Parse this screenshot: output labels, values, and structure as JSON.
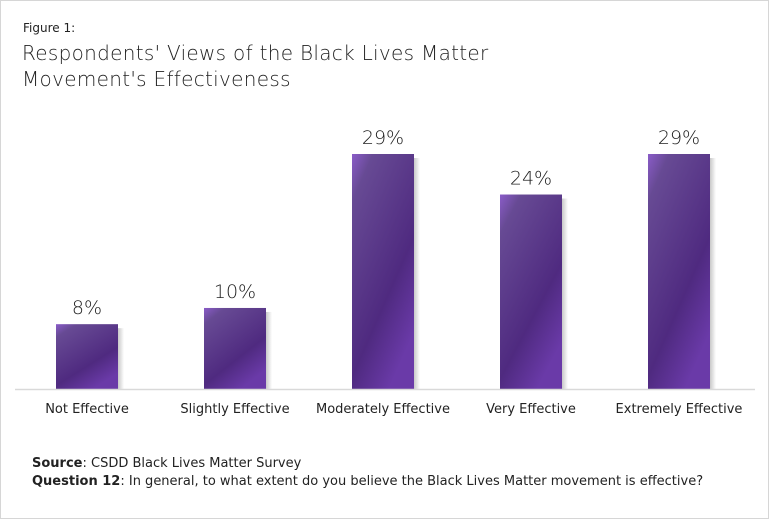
{
  "figure_label": "Figure 1:",
  "chart_data": {
    "type": "bar",
    "title": "Respondents' Views of the Black Lives Matter Movement's Effectiveness",
    "title_lines": [
      "Respondents' Views of the Black Lives Matter",
      "Movement's Effectiveness"
    ],
    "categories": [
      "Not Effective",
      "Slightly  Effective",
      "Moderately  Effective",
      "Very Effective",
      "Extremely  Effective"
    ],
    "values": [
      8,
      10,
      29,
      24,
      29
    ],
    "data_labels": [
      "8%",
      "10%",
      "29%",
      "24%",
      "29%"
    ],
    "ylim": [
      0,
      29
    ],
    "grid": false,
    "bar_color_top": "#8a5cc8",
    "bar_color_mid": "#4f2a80",
    "bar_color_bottom": "#6a3aa8"
  },
  "footer": {
    "source_label": "Source",
    "source_text": ": CSDD Black Lives Matter Survey",
    "question_label": "Question 12",
    "question_text": ": In general, to what extent do you believe the Black Lives Matter movement is effective?"
  }
}
